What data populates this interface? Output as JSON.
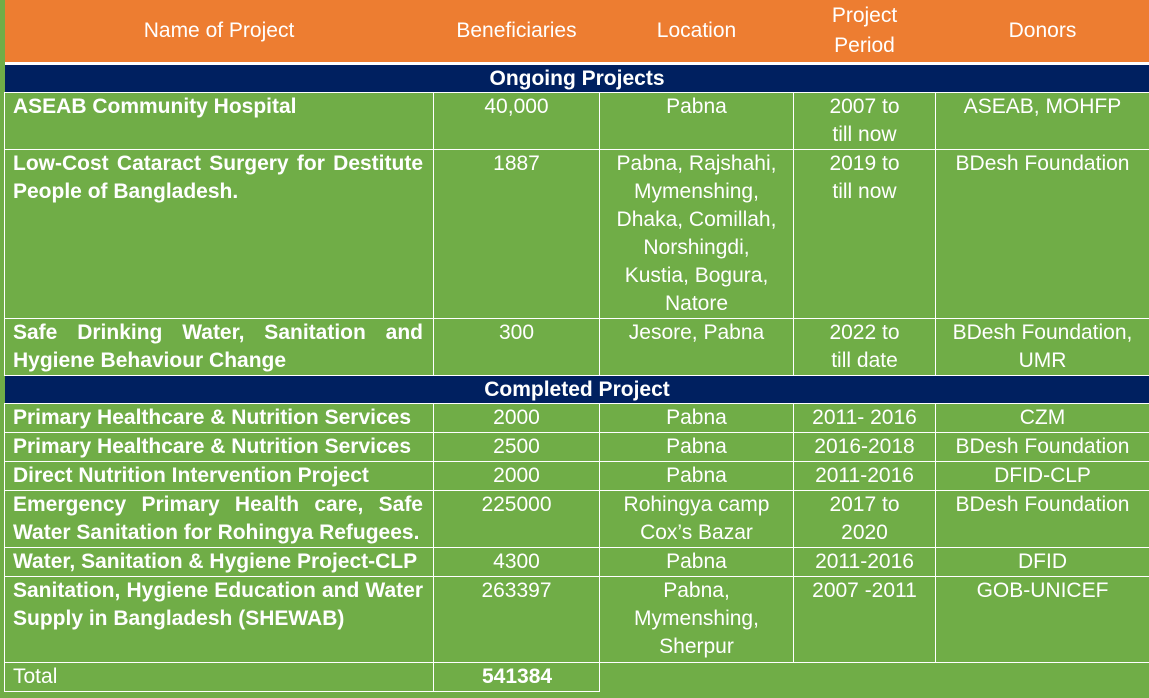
{
  "columns": [
    "Name of Project",
    "Beneficiaries",
    "Location",
    "Project Period",
    "Donors"
  ],
  "sections": [
    {
      "title": "Ongoing Projects",
      "rows": [
        {
          "name": "ASEAB Community Hospital",
          "beneficiaries": "40,000",
          "location": "Pabna",
          "period": "2007 to till now",
          "donors": "ASEAB, MOHFP"
        },
        {
          "name": "Low-Cost Cataract Surgery for Destitute People of Bangladesh.",
          "beneficiaries": "1887",
          "location": "Pabna, Rajshahi, Mymenshing, Dhaka, Comillah, Norshingdi, Kustia, Bogura, Natore",
          "period": "2019 to till now",
          "donors": "BDesh Foundation"
        },
        {
          "name": "Safe Drinking Water, Sanitation and Hygiene Behaviour Change",
          "beneficiaries": "300",
          "location": "Jesore, Pabna",
          "period": "2022 to till date",
          "donors": "BDesh Foundation, UMR"
        }
      ]
    },
    {
      "title": "Completed Project",
      "rows": [
        {
          "name": "Primary Healthcare & Nutrition Services",
          "beneficiaries": "2000",
          "location": "Pabna",
          "period": "2011- 2016",
          "donors": "CZM"
        },
        {
          "name": "Primary Healthcare & Nutrition Services",
          "beneficiaries": "2500",
          "location": "Pabna",
          "period": "2016-2018",
          "donors": "BDesh Foundation"
        },
        {
          "name": "Direct Nutrition Intervention Project",
          "beneficiaries": "2000",
          "location": "Pabna",
          "period": "2011-2016",
          "donors": "DFID-CLP"
        },
        {
          "name": "Emergency Primary Health care, Safe Water Sanitation for Rohingya Refugees.",
          "beneficiaries": "225000",
          "location": "Rohingya camp Cox’s Bazar",
          "period": "2017 to 2020",
          "donors": "BDesh Foundation"
        },
        {
          "name": "Water, Sanitation & Hygiene Project-CLP",
          "beneficiaries": "4300",
          "location": "Pabna",
          "period": "2011-2016",
          "donors": "DFID"
        },
        {
          "name": "Sanitation, Hygiene Education and Water Supply in Bangladesh (SHEWAB)",
          "beneficiaries": "263397",
          "location": "Pabna, Mymenshing, Sherpur",
          "period": "2007 -2011",
          "donors": "GOB-UNICEF"
        }
      ]
    }
  ],
  "total": {
    "label": "Total",
    "value": "541384"
  },
  "colors": {
    "header": "#ed7d31",
    "section": "#002060",
    "body": "#70ad47",
    "text": "#ffffff"
  }
}
